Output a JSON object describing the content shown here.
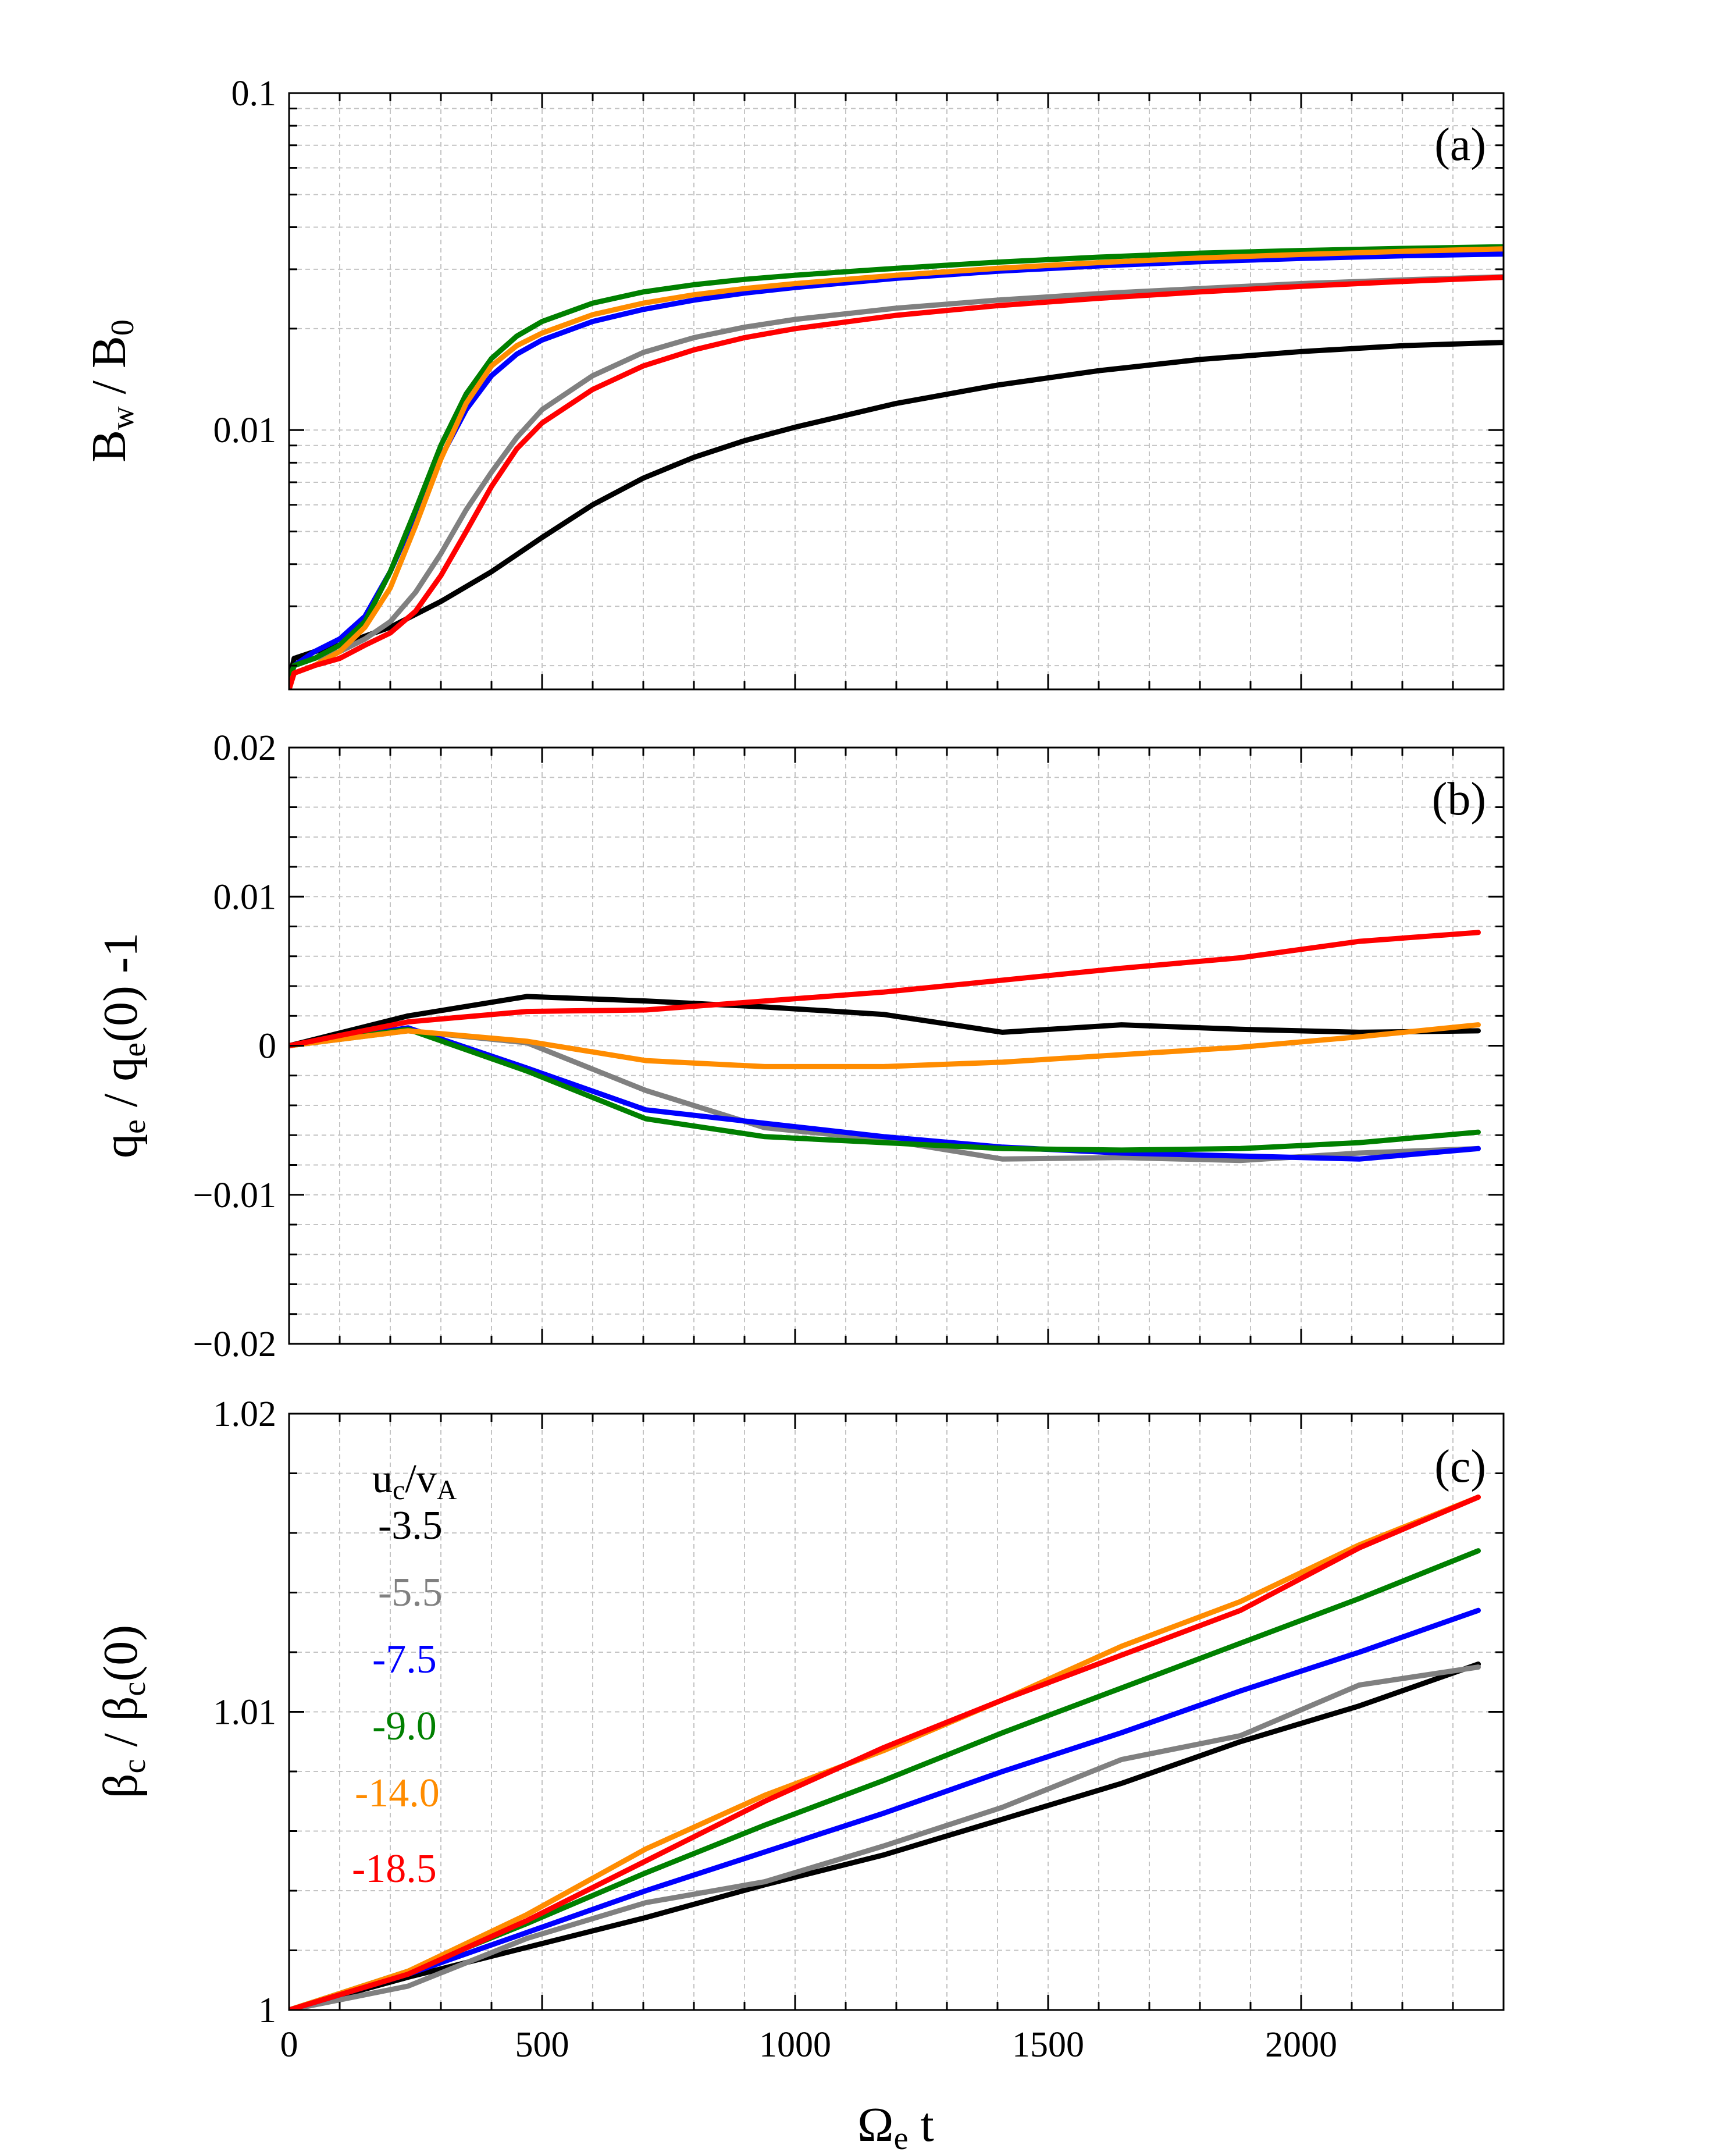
{
  "figure": {
    "x_axis": {
      "label_main": "Ω",
      "label_sub": "e",
      "label_tail": " t",
      "range": [
        0,
        2400
      ],
      "ticks": [
        0,
        500,
        1000,
        1500,
        2000
      ],
      "tick_labels": [
        "0",
        "500",
        "1000",
        "1500",
        "2000"
      ]
    },
    "legend": {
      "title_u": "u",
      "title_u_sub": "c",
      "title_mid": "/v",
      "title_v_sub": "A"
    }
  },
  "chart_data": [
    {
      "type": "line",
      "panel": "(a)",
      "ylabel": {
        "a": "B",
        "a_sub": "w",
        "mid": " / B",
        "b_sub": "0"
      },
      "yscale": "log",
      "ylim": [
        0.0017,
        0.1
      ],
      "x_range": [
        0,
        2400
      ],
      "y_ticks": [
        0.01,
        0.1
      ],
      "y_tick_labels": [
        "0.01",
        "0.1"
      ],
      "grid": true,
      "series": [
        {
          "name": "-3.5",
          "color": "#000000",
          "x": [
            0,
            10,
            50,
            100,
            200,
            300,
            400,
            500,
            600,
            700,
            800,
            900,
            1000,
            1200,
            1400,
            1600,
            1800,
            2000,
            2200,
            2400
          ],
          "y": [
            0.0018,
            0.0021,
            0.0022,
            0.0023,
            0.0026,
            0.0031,
            0.0038,
            0.0048,
            0.006,
            0.0072,
            0.0083,
            0.0093,
            0.0102,
            0.012,
            0.0136,
            0.015,
            0.0162,
            0.0171,
            0.0178,
            0.0182
          ]
        },
        {
          "name": "-5.5",
          "color": "#808080",
          "x": [
            0,
            10,
            50,
            100,
            150,
            200,
            250,
            300,
            350,
            400,
            450,
            500,
            600,
            700,
            800,
            900,
            1000,
            1200,
            1400,
            1600,
            1800,
            2000,
            2200,
            2400
          ],
          "y": [
            0.0018,
            0.002,
            0.0021,
            0.0022,
            0.0024,
            0.0027,
            0.0033,
            0.0043,
            0.0058,
            0.0075,
            0.0095,
            0.0115,
            0.0145,
            0.017,
            0.0188,
            0.0202,
            0.0213,
            0.023,
            0.0243,
            0.0254,
            0.0263,
            0.0272,
            0.0279,
            0.0285
          ]
        },
        {
          "name": "-7.5",
          "color": "#0000ff",
          "x": [
            0,
            10,
            50,
            100,
            150,
            200,
            250,
            300,
            350,
            400,
            450,
            500,
            600,
            700,
            800,
            900,
            1000,
            1200,
            1400,
            1600,
            1800,
            2000,
            2200,
            2400
          ],
          "y": [
            0.0018,
            0.002,
            0.0022,
            0.0024,
            0.0028,
            0.0038,
            0.0056,
            0.0083,
            0.0115,
            0.0145,
            0.0168,
            0.0185,
            0.021,
            0.0228,
            0.0243,
            0.0255,
            0.0265,
            0.0282,
            0.0296,
            0.0307,
            0.0316,
            0.0323,
            0.0329,
            0.0333
          ]
        },
        {
          "name": "-9.0",
          "color": "#008000",
          "x": [
            0,
            10,
            50,
            100,
            150,
            200,
            250,
            300,
            350,
            400,
            450,
            500,
            600,
            700,
            800,
            900,
            1000,
            1200,
            1400,
            1600,
            1800,
            2000,
            2200,
            2400
          ],
          "y": [
            0.0018,
            0.002,
            0.0021,
            0.0023,
            0.0027,
            0.0038,
            0.0058,
            0.009,
            0.0128,
            0.0163,
            0.019,
            0.021,
            0.0238,
            0.0257,
            0.027,
            0.028,
            0.0288,
            0.0302,
            0.0315,
            0.0326,
            0.0335,
            0.0341,
            0.0346,
            0.035
          ]
        },
        {
          "name": "-14.0",
          "color": "#ff8c00",
          "x": [
            0,
            10,
            50,
            100,
            150,
            200,
            250,
            300,
            350,
            400,
            450,
            500,
            600,
            700,
            800,
            900,
            1000,
            1200,
            1400,
            1600,
            1800,
            2000,
            2200,
            2400
          ],
          "y": [
            0.0017,
            0.0019,
            0.002,
            0.0022,
            0.0026,
            0.0034,
            0.0052,
            0.0082,
            0.012,
            0.0155,
            0.0178,
            0.0194,
            0.022,
            0.0238,
            0.0252,
            0.0263,
            0.0272,
            0.0288,
            0.0302,
            0.0314,
            0.0324,
            0.0332,
            0.0339,
            0.0345
          ]
        },
        {
          "name": "-18.5",
          "color": "#ff0000",
          "x": [
            0,
            10,
            50,
            100,
            150,
            200,
            250,
            300,
            350,
            400,
            450,
            500,
            600,
            700,
            800,
            900,
            1000,
            1200,
            1400,
            1600,
            1800,
            2000,
            2200,
            2400
          ],
          "y": [
            0.0017,
            0.0019,
            0.002,
            0.0021,
            0.0023,
            0.0025,
            0.0029,
            0.0037,
            0.005,
            0.0068,
            0.0088,
            0.0105,
            0.0132,
            0.0155,
            0.0173,
            0.0188,
            0.02,
            0.0219,
            0.0234,
            0.0246,
            0.0257,
            0.0267,
            0.0276,
            0.0284
          ]
        }
      ]
    },
    {
      "type": "line",
      "panel": "(b)",
      "ylabel": {
        "a": "q",
        "a_sub": "e",
        "mid": " / q",
        "b_sub": "e",
        "tail": "(0) -1"
      },
      "ylim": [
        -0.02,
        0.02
      ],
      "x_range": [
        0,
        2400
      ],
      "y_ticks": [
        -0.02,
        -0.01,
        0,
        0.01,
        0.02
      ],
      "y_tick_labels": [
        "−0.02",
        "−0.01",
        "0",
        "0.01",
        "0.02"
      ],
      "grid": true,
      "series": [
        {
          "name": "-3.5",
          "color": "#000000",
          "x": [
            0,
            235,
            470,
            705,
            940,
            1175,
            1410,
            1645,
            1880,
            2115,
            2350
          ],
          "y": [
            0,
            0.002,
            0.0033,
            0.003,
            0.0026,
            0.0021,
            0.0009,
            0.0014,
            0.0011,
            0.0009,
            0.001
          ]
        },
        {
          "name": "-5.5",
          "color": "#808080",
          "x": [
            0,
            235,
            470,
            705,
            940,
            1175,
            1410,
            1645,
            1880,
            2115,
            2350
          ],
          "y": [
            0,
            0.001,
            0.0002,
            -0.003,
            -0.0055,
            -0.0063,
            -0.0076,
            -0.0075,
            -0.0077,
            -0.0072,
            -0.0069
          ]
        },
        {
          "name": "-7.5",
          "color": "#0000ff",
          "x": [
            0,
            235,
            470,
            705,
            940,
            1175,
            1410,
            1645,
            1880,
            2115,
            2350
          ],
          "y": [
            0,
            0.0012,
            -0.0015,
            -0.0043,
            -0.0052,
            -0.0061,
            -0.0068,
            -0.0072,
            -0.0074,
            -0.0076,
            -0.0069
          ]
        },
        {
          "name": "-9.0",
          "color": "#008000",
          "x": [
            0,
            235,
            470,
            705,
            940,
            1175,
            1410,
            1645,
            1880,
            2115,
            2350
          ],
          "y": [
            0,
            0.0011,
            -0.0017,
            -0.0049,
            -0.0061,
            -0.0065,
            -0.0069,
            -0.007,
            -0.0069,
            -0.0065,
            -0.0058
          ]
        },
        {
          "name": "-14.0",
          "color": "#ff8c00",
          "x": [
            0,
            235,
            470,
            705,
            940,
            1175,
            1410,
            1645,
            1880,
            2115,
            2350
          ],
          "y": [
            0,
            0.001,
            0.0003,
            -0.001,
            -0.0014,
            -0.0014,
            -0.0011,
            -0.0006,
            -0.0001,
            0.0006,
            0.0014
          ]
        },
        {
          "name": "-18.5",
          "color": "#ff0000",
          "x": [
            0,
            235,
            470,
            705,
            940,
            1175,
            1410,
            1645,
            1880,
            2115,
            2350
          ],
          "y": [
            0,
            0.0016,
            0.0023,
            0.0024,
            0.003,
            0.0036,
            0.0044,
            0.0052,
            0.0059,
            0.007,
            0.0076
          ]
        }
      ]
    },
    {
      "type": "line",
      "panel": "(c)",
      "ylabel": {
        "a": "β",
        "a_sub": "c",
        "mid": " / β",
        "b_sub": "c",
        "tail": "(0)"
      },
      "ylim": [
        1.0,
        1.02
      ],
      "x_range": [
        0,
        2400
      ],
      "y_ticks": [
        1.0,
        1.01,
        1.02
      ],
      "y_tick_labels": [
        "1",
        "1.01",
        "1.02"
      ],
      "grid": true,
      "series": [
        {
          "name": "-3.5",
          "color": "#000000",
          "x": [
            0,
            235,
            470,
            705,
            940,
            1175,
            1410,
            1645,
            1880,
            2115,
            2350
          ],
          "y": [
            1.0,
            1.0011,
            1.0021,
            1.0031,
            1.0042,
            1.0052,
            1.0064,
            1.0076,
            1.009,
            1.0102,
            1.0116
          ]
        },
        {
          "name": "-5.5",
          "color": "#808080",
          "x": [
            0,
            235,
            470,
            705,
            940,
            1175,
            1410,
            1645,
            1880,
            2115,
            2350
          ],
          "y": [
            1.0,
            1.0008,
            1.0024,
            1.0036,
            1.0043,
            1.0055,
            1.0068,
            1.0084,
            1.0092,
            1.0109,
            1.0115
          ]
        },
        {
          "name": "-7.5",
          "color": "#0000ff",
          "x": [
            0,
            235,
            470,
            705,
            940,
            1175,
            1410,
            1645,
            1880,
            2115,
            2350
          ],
          "y": [
            1.0,
            1.0012,
            1.0026,
            1.004,
            1.0053,
            1.0066,
            1.008,
            1.0093,
            1.0107,
            1.012,
            1.0134
          ]
        },
        {
          "name": "-9.0",
          "color": "#008000",
          "x": [
            0,
            235,
            470,
            705,
            940,
            1175,
            1410,
            1645,
            1880,
            2115,
            2350
          ],
          "y": [
            1.0,
            1.0013,
            1.0029,
            1.0046,
            1.0062,
            1.0077,
            1.0093,
            1.0108,
            1.0123,
            1.0138,
            1.0154
          ]
        },
        {
          "name": "-14.0",
          "color": "#ff8c00",
          "x": [
            0,
            235,
            470,
            705,
            940,
            1175,
            1410,
            1645,
            1880,
            2115,
            2350
          ],
          "y": [
            1.0,
            1.0013,
            1.0032,
            1.0054,
            1.0072,
            1.0087,
            1.0104,
            1.0122,
            1.0137,
            1.0156,
            1.0172
          ]
        },
        {
          "name": "-18.5",
          "color": "#ff0000",
          "x": [
            0,
            235,
            470,
            705,
            940,
            1175,
            1410,
            1645,
            1880,
            2115,
            2350
          ],
          "y": [
            1.0,
            1.0012,
            1.003,
            1.005,
            1.007,
            1.0088,
            1.0104,
            1.0119,
            1.0134,
            1.0155,
            1.0172
          ]
        }
      ]
    }
  ]
}
